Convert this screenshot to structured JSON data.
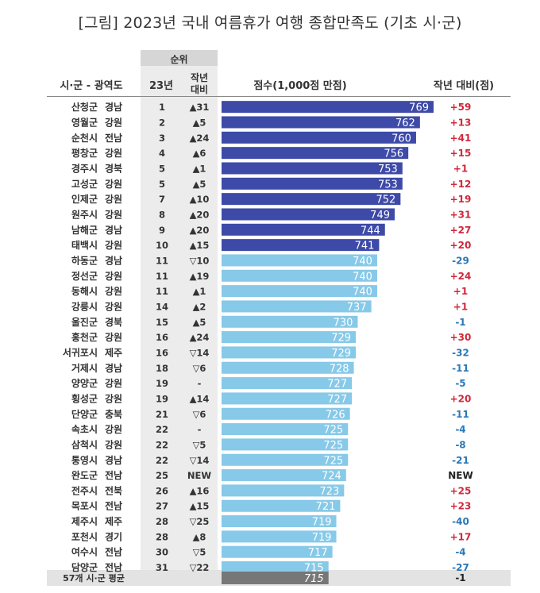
{
  "title": "[그림] 2023년 국내 여름휴가 여행 종합만족도 (기초 시·군)",
  "headers": {
    "region": "시·군 - 광역도",
    "rank_group": "순위",
    "rank_23": "23년",
    "prev_line1": "작년",
    "prev_line2": "대비",
    "score": "점수(1,000점 만점)",
    "change": "작년 대비(점)"
  },
  "colors": {
    "top10_bar": "#3d4aa8",
    "other_bar": "#87c9e8",
    "average_bar": "#777777",
    "positive_change": "#d0283c",
    "negative_change": "#2a78b8",
    "new_text": "#222222"
  },
  "chart_data": {
    "type": "bar",
    "title": "[그림] 2023년 국내 여름휴가 여행 종합만족도 (기초 시·군)",
    "xlabel": "점수(1,000점 만점)",
    "ylabel": "시·군 - 광역도",
    "xlim": [
      660,
      775
    ],
    "rows": [
      {
        "city": "산청군",
        "province": "경남",
        "rank": "1",
        "prev": "▲31",
        "score": 769,
        "change": "+59"
      },
      {
        "city": "영월군",
        "province": "강원",
        "rank": "2",
        "prev": "▲5",
        "score": 762,
        "change": "+13"
      },
      {
        "city": "순천시",
        "province": "전남",
        "rank": "3",
        "prev": "▲24",
        "score": 760,
        "change": "+41"
      },
      {
        "city": "평창군",
        "province": "강원",
        "rank": "4",
        "prev": "▲6",
        "score": 756,
        "change": "+15"
      },
      {
        "city": "경주시",
        "province": "경북",
        "rank": "5",
        "prev": "▲1",
        "score": 753,
        "change": "+1"
      },
      {
        "city": "고성군",
        "province": "강원",
        "rank": "5",
        "prev": "▲5",
        "score": 753,
        "change": "+12"
      },
      {
        "city": "인제군",
        "province": "강원",
        "rank": "7",
        "prev": "▲10",
        "score": 752,
        "change": "+19"
      },
      {
        "city": "원주시",
        "province": "강원",
        "rank": "8",
        "prev": "▲20",
        "score": 749,
        "change": "+31"
      },
      {
        "city": "남해군",
        "province": "경남",
        "rank": "9",
        "prev": "▲20",
        "score": 744,
        "change": "+27"
      },
      {
        "city": "태백시",
        "province": "강원",
        "rank": "10",
        "prev": "▲15",
        "score": 741,
        "change": "+20"
      },
      {
        "city": "하동군",
        "province": "경남",
        "rank": "11",
        "prev": "▽10",
        "score": 740,
        "change": "-29"
      },
      {
        "city": "정선군",
        "province": "강원",
        "rank": "11",
        "prev": "▲19",
        "score": 740,
        "change": "+24"
      },
      {
        "city": "동해시",
        "province": "강원",
        "rank": "11",
        "prev": "▲1",
        "score": 740,
        "change": "+1"
      },
      {
        "city": "강릉시",
        "province": "강원",
        "rank": "14",
        "prev": "▲2",
        "score": 737,
        "change": "+1"
      },
      {
        "city": "울진군",
        "province": "경북",
        "rank": "15",
        "prev": "▲5",
        "score": 730,
        "change": "-1"
      },
      {
        "city": "홍천군",
        "province": "강원",
        "rank": "16",
        "prev": "▲24",
        "score": 729,
        "change": "+30"
      },
      {
        "city": "서귀포시",
        "province": "제주",
        "rank": "16",
        "prev": "▽14",
        "score": 729,
        "change": "-32"
      },
      {
        "city": "거제시",
        "province": "경남",
        "rank": "18",
        "prev": "▽6",
        "score": 728,
        "change": "-11"
      },
      {
        "city": "양양군",
        "province": "강원",
        "rank": "19",
        "prev": "-",
        "score": 727,
        "change": "-5"
      },
      {
        "city": "횡성군",
        "province": "강원",
        "rank": "19",
        "prev": "▲14",
        "score": 727,
        "change": "+20"
      },
      {
        "city": "단양군",
        "province": "충북",
        "rank": "21",
        "prev": "▽6",
        "score": 726,
        "change": "-11"
      },
      {
        "city": "속초시",
        "province": "강원",
        "rank": "22",
        "prev": "-",
        "score": 725,
        "change": "-4"
      },
      {
        "city": "삼척시",
        "province": "강원",
        "rank": "22",
        "prev": "▽5",
        "score": 725,
        "change": "-8"
      },
      {
        "city": "통영시",
        "province": "경남",
        "rank": "22",
        "prev": "▽14",
        "score": 725,
        "change": "-21"
      },
      {
        "city": "완도군",
        "province": "전남",
        "rank": "25",
        "prev": "NEW",
        "score": 724,
        "change": "NEW"
      },
      {
        "city": "전주시",
        "province": "전북",
        "rank": "26",
        "prev": "▲16",
        "score": 723,
        "change": "+25"
      },
      {
        "city": "목포시",
        "province": "전남",
        "rank": "27",
        "prev": "▲15",
        "score": 721,
        "change": "+23"
      },
      {
        "city": "제주시",
        "province": "제주",
        "rank": "28",
        "prev": "▽25",
        "score": 719,
        "change": "-40"
      },
      {
        "city": "포천시",
        "province": "경기",
        "rank": "28",
        "prev": "▲8",
        "score": 719,
        "change": "+17"
      },
      {
        "city": "여수시",
        "province": "전남",
        "rank": "30",
        "prev": "▽5",
        "score": 717,
        "change": "-4"
      },
      {
        "city": "담양군",
        "province": "전남",
        "rank": "31",
        "prev": "▽22",
        "score": 715,
        "change": "-27"
      }
    ],
    "average": {
      "label": "57개 시·군 평균",
      "score": 715,
      "change": "-1"
    }
  }
}
